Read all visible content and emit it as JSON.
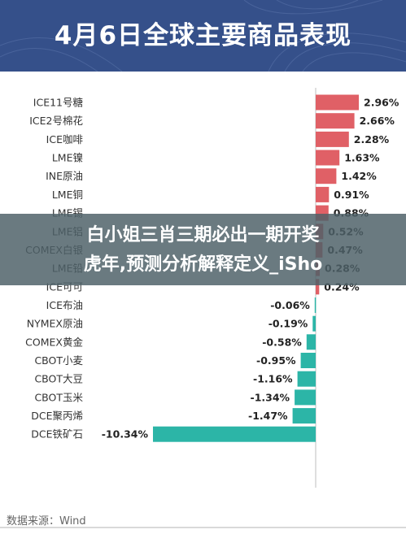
{
  "header": {
    "title": "4月6日全球主要商品表现"
  },
  "overlay": {
    "text": "白小姐三肖三期必出一期开奖\n虎年,预测分析解释定义_iSho"
  },
  "source": "数据来源：Wind",
  "colors": {
    "header_bg": "#35508a",
    "positive": "#e06066",
    "negative": "#2cb5a7",
    "overlay": "#4e6068"
  },
  "chart_data": {
    "type": "bar",
    "orientation": "horizontal",
    "title": "4月6日全球主要商品表现",
    "categories": [
      "ICE11号糖",
      "ICE2号棉花",
      "ICE咖啡",
      "LME镍",
      "INE原油",
      "LME铜",
      "LME锡",
      "LME铝",
      "COMEX白银",
      "LME铅",
      "ICE可可",
      "ICE布油",
      "NYMEX原油",
      "COMEX黄金",
      "CBOT小麦",
      "CBOT大豆",
      "CBOT玉米",
      "DCE聚丙烯",
      "DCE铁矿石"
    ],
    "values": [
      2.96,
      2.66,
      2.28,
      1.63,
      1.42,
      0.91,
      0.88,
      0.52,
      0.47,
      0.28,
      0.24,
      -0.06,
      -0.19,
      -0.58,
      -0.95,
      -1.16,
      -1.34,
      -1.47,
      -10.34
    ],
    "value_labels": [
      "2.96%",
      "2.66%",
      "2.28%",
      "1.63%",
      "1.42%",
      "0.91%",
      "0.88%",
      "0.52%",
      "0.47%",
      "0.28%",
      "0.24%",
      "-0.06%",
      "-0.19%",
      "-0.58%",
      "-0.95%",
      "-1.16%",
      "-1.34%",
      "-1.47%",
      "-10.34%"
    ],
    "unit": "%",
    "xlim": [
      -10.34,
      2.96
    ]
  }
}
